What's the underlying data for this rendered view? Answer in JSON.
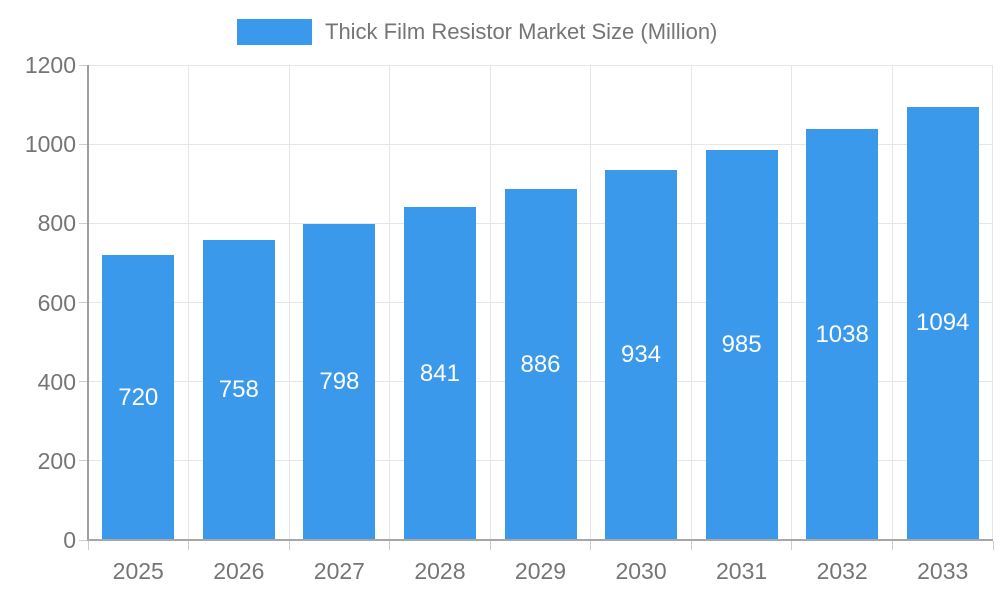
{
  "chart_data": {
    "type": "bar",
    "title": "Thick Film Resistor Market Size (Million)",
    "categories": [
      "2025",
      "2026",
      "2027",
      "2028",
      "2029",
      "2030",
      "2031",
      "2032",
      "2033"
    ],
    "series": [
      {
        "name": "Thick Film Resistor Market Size (Million)",
        "values": [
          720,
          758,
          798,
          841,
          886,
          934,
          985,
          1038,
          1094
        ]
      }
    ],
    "xlabel": "",
    "ylabel": "",
    "ylim": [
      0,
      1200
    ],
    "yticks": [
      0,
      200,
      400,
      600,
      800,
      1000,
      1200
    ],
    "grid": true,
    "legend_position": "top-center",
    "value_label_position": "inside-center",
    "colors": {
      "bar": "#3b99ec",
      "value_label": "#ffffff",
      "axis_text": "#757575",
      "legend_text": "#757575",
      "gridline": "#e6e6e6",
      "y_axis_line": "#9e9e9e",
      "x_axis_line": "#a6a6a6",
      "tick": "#cccccc",
      "background": "#ffffff"
    }
  },
  "legend": {
    "label": "Thick Film Resistor Market Size (Million)"
  }
}
